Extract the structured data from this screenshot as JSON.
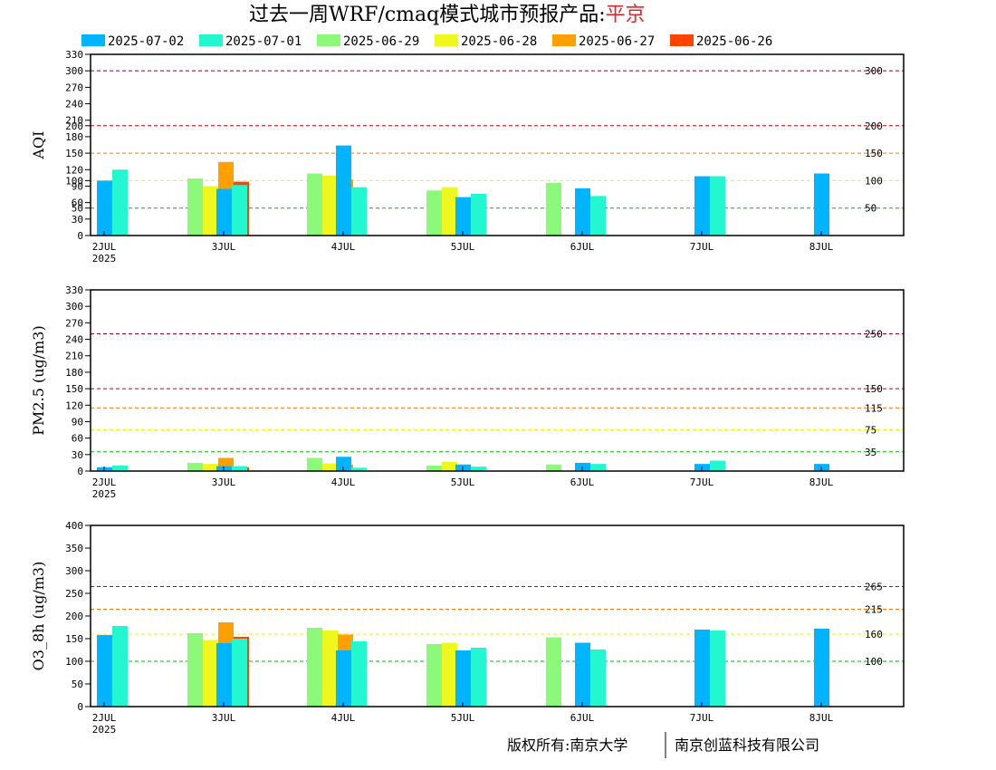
{
  "title": {
    "prefix": "过去一周WRF/cmaq模式城市预报产品:",
    "city": "平京"
  },
  "legend": [
    {
      "name": "2025-07-02",
      "color": "#00b4ff"
    },
    {
      "name": "2025-07-01",
      "color": "#22f7d0"
    },
    {
      "name": "2025-06-29",
      "color": "#8cf97a"
    },
    {
      "name": "2025-06-28",
      "color": "#eef81e"
    },
    {
      "name": "2025-06-27",
      "color": "#ffa000"
    },
    {
      "name": "2025-06-26",
      "color": "#ff4300"
    }
  ],
  "copyright": {
    "left": "版权所有:南京大学",
    "right": "南京创蓝科技有限公司"
  },
  "chart_data": [
    {
      "type": "bar",
      "ylabel": "AQI",
      "ylim": [
        0,
        330
      ],
      "yticks": [
        0,
        30,
        50,
        60,
        90,
        100,
        120,
        150,
        180,
        200,
        210,
        240,
        270,
        300,
        330
      ],
      "x_day_labels": [
        "2JUL",
        "3JUL",
        "4JUL",
        "5JUL",
        "6JUL",
        "7JUL",
        "8JUL"
      ],
      "x_year_label": "2025",
      "thresholds": [
        {
          "value": 300,
          "label": "300",
          "color": "#990033"
        },
        {
          "value": 200,
          "label": "200",
          "color": "#cc0000"
        },
        {
          "value": 150,
          "label": "150",
          "color": "#ff7700"
        },
        {
          "value": 100,
          "label": "100",
          "color": "#f2f200"
        },
        {
          "value": 50,
          "label": "50",
          "color": "#00bb00"
        }
      ],
      "groups": [
        {
          "day": 0,
          "bars": [
            100,
            120
          ]
        },
        {
          "day": 0.5,
          "bars": [
            null,
            null,
            104,
            90,
            134,
            98
          ]
        },
        {
          "day": 1,
          "bars": [
            85,
            92
          ]
        },
        {
          "day": 1.5,
          "bars": [
            null,
            null,
            113,
            109,
            102
          ]
        },
        {
          "day": 2,
          "bars": [
            164,
            88
          ]
        },
        {
          "day": 2.5,
          "bars": [
            null,
            null,
            82,
            88
          ]
        },
        {
          "day": 3,
          "bars": [
            70,
            76
          ]
        },
        {
          "day": 3.5,
          "bars": [
            null,
            null,
            96
          ]
        },
        {
          "day": 4,
          "bars": [
            86,
            72
          ]
        },
        {
          "day": 5,
          "bars": [
            108,
            108
          ]
        },
        {
          "day": 6,
          "bars": [
            113
          ]
        }
      ]
    },
    {
      "type": "bar",
      "ylabel": "PM2.5 (ug/m3)",
      "ylim": [
        0,
        330
      ],
      "yticks": [
        0,
        30,
        60,
        90,
        120,
        150,
        180,
        210,
        240,
        270,
        300,
        330
      ],
      "x_day_labels": [
        "2JUL",
        "3JUL",
        "4JUL",
        "5JUL",
        "6JUL",
        "7JUL",
        "8JUL"
      ],
      "x_year_label": "2025",
      "thresholds": [
        {
          "value": 250,
          "label": "250",
          "color": "#990033"
        },
        {
          "value": 150,
          "label": "150",
          "color": "#cc0000"
        },
        {
          "value": 115,
          "label": "115",
          "color": "#ff7700"
        },
        {
          "value": 75,
          "label": "75",
          "color": "#f2f200"
        },
        {
          "value": 35,
          "label": "35",
          "color": "#00bb00"
        }
      ],
      "groups": [
        {
          "day": 0,
          "bars": [
            7,
            10
          ]
        },
        {
          "day": 0.5,
          "bars": [
            null,
            null,
            15,
            13,
            24,
            7
          ]
        },
        {
          "day": 1,
          "bars": [
            9,
            9
          ]
        },
        {
          "day": 1.5,
          "bars": [
            null,
            null,
            24,
            14,
            12
          ]
        },
        {
          "day": 2,
          "bars": [
            26,
            6
          ]
        },
        {
          "day": 2.5,
          "bars": [
            null,
            null,
            10,
            17
          ]
        },
        {
          "day": 3,
          "bars": [
            12,
            8
          ]
        },
        {
          "day": 3.5,
          "bars": [
            null,
            null,
            12
          ]
        },
        {
          "day": 4,
          "bars": [
            15,
            13
          ]
        },
        {
          "day": 5,
          "bars": [
            13,
            19
          ]
        },
        {
          "day": 6,
          "bars": [
            13
          ]
        }
      ]
    },
    {
      "type": "bar",
      "ylabel": "O3_8h (ug/m3)",
      "ylim": [
        0,
        400
      ],
      "yticks": [
        0,
        50,
        100,
        150,
        200,
        250,
        300,
        350,
        400
      ],
      "x_day_labels": [
        "2JUL",
        "3JUL",
        "4JUL",
        "5JUL",
        "6JUL",
        "7JUL",
        "8JUL"
      ],
      "x_year_label": "2025",
      "thresholds": [
        {
          "value": 265,
          "label": "265",
          "color": "#cc0000"
        },
        {
          "value": 215,
          "label": "215",
          "color": "#ff7700"
        },
        {
          "value": 160,
          "label": "160",
          "color": "#f2f200"
        },
        {
          "value": 100,
          "label": "100",
          "color": "#00bb00"
        }
      ],
      "groups": [
        {
          "day": 0,
          "bars": [
            158,
            178
          ]
        },
        {
          "day": 0.5,
          "bars": [
            null,
            null,
            162,
            147,
            186,
            154
          ]
        },
        {
          "day": 1,
          "bars": [
            140,
            150
          ]
        },
        {
          "day": 1.5,
          "bars": [
            null,
            null,
            174,
            168,
            159
          ]
        },
        {
          "day": 2,
          "bars": [
            124,
            144
          ]
        },
        {
          "day": 2.5,
          "bars": [
            null,
            null,
            138,
            141
          ]
        },
        {
          "day": 3,
          "bars": [
            124,
            130
          ]
        },
        {
          "day": 3.5,
          "bars": [
            null,
            null,
            153
          ]
        },
        {
          "day": 4,
          "bars": [
            141,
            126
          ]
        },
        {
          "day": 5,
          "bars": [
            170,
            168
          ]
        },
        {
          "day": 6,
          "bars": [
            172
          ]
        }
      ]
    }
  ]
}
